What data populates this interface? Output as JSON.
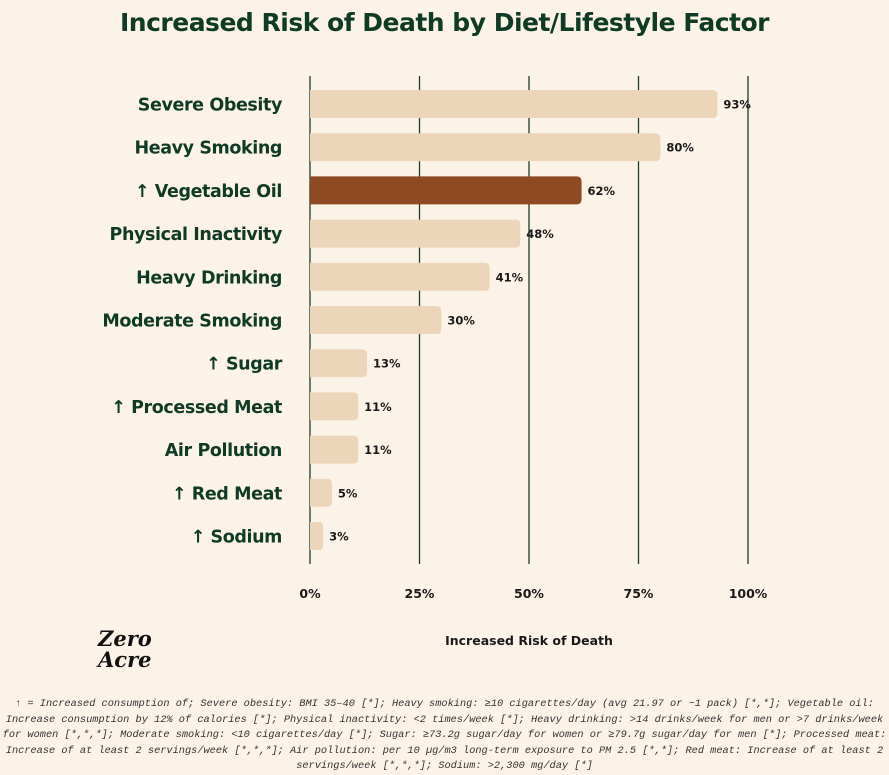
{
  "chart_data": {
    "type": "bar",
    "orientation": "horizontal",
    "title": "Increased Risk of Death by Diet/Lifestyle Factor",
    "xlabel": "Increased Risk of Death",
    "ylabel": "",
    "categories": [
      "Severe Obesity",
      "Heavy Smoking",
      "↑ Vegetable Oil",
      "Physical Inactivity",
      "Heavy Drinking",
      "Moderate Smoking",
      "↑ Sugar",
      "↑ Processed Meat",
      "Air Pollution",
      "↑ Red Meat",
      "↑ Sodium"
    ],
    "values": [
      93,
      80,
      62,
      48,
      41,
      30,
      13,
      11,
      11,
      5,
      3
    ],
    "data_labels": [
      "93%",
      "80%",
      "62%",
      "48%",
      "41%",
      "30%",
      "13%",
      "11%",
      "11%",
      "5%",
      "3%"
    ],
    "xlim": [
      0,
      100
    ],
    "xticks": [
      0,
      25,
      50,
      75,
      100
    ],
    "xtick_labels": [
      "0%",
      "25%",
      "50%",
      "75%",
      "100%"
    ],
    "grid": "vertical",
    "colors": {
      "default_bar": "#ecd5b8",
      "highlight_bar": "#8e4a22",
      "highlight_category": "↑ Vegetable Oil",
      "text": "#0f3a25",
      "gridline": "#1d3b2a",
      "background": "#fbf3e8"
    }
  },
  "logo": {
    "line1": "Zero",
    "line2": "Acre"
  },
  "footnote": "↑ = Increased consumption of; Severe obesity: BMI 35–40 [*]; Heavy smoking: ≥10 cigarettes/day (avg 21.97 or ~1 pack) [*,*]; Vegetable oil: Increase consumption by 12% of calories [*]; Physical inactivity: <2 times/week [*]; Heavy drinking: >14 drinks/week for men or >7 drinks/week for women [*,*,*]; Moderate smoking: <10 cigarettes/day [*]; Sugar: ≥73.2g sugar/day for women or ≥79.7g sugar/day for men [*]; Processed meat: Increase of at least 2 servings/week [*,*,*]; Air pollution: per 10 µg/m3 long-term exposure to PM 2.5 [*,*]; Red meat: Increase of at least 2 servings/week [*,*,*]; Sodium: >2,300 mg/day [*]"
}
